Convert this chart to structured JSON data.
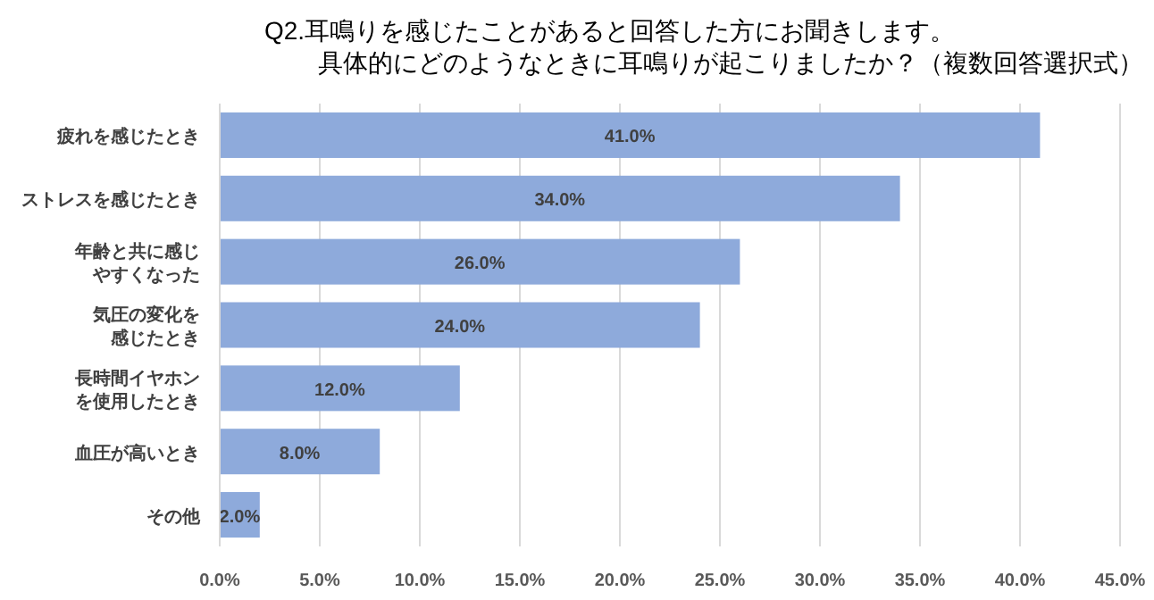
{
  "chart_data": {
    "type": "bar",
    "orientation": "horizontal",
    "title": "Q2.耳鳴りを感じたことがあると回答した方にお聞きします。",
    "subtitle": "具体的にどのようなときに耳鳴りが起こりましたか？（複数回答選択式）",
    "categories": [
      "疲れを感じたとき",
      "ストレスを感じたとき",
      "年齢と共に感じやすくなった",
      "気圧の変化を感じたとき",
      "長時間イヤホンを使用したとき",
      "血圧が高いとき",
      "その他"
    ],
    "values": [
      41,
      34,
      26,
      24,
      12,
      8,
      2
    ],
    "value_labels": [
      "41.0%",
      "34.0%",
      "26.0%",
      "24.0%",
      "12.0%",
      "8.0%",
      "2.0%"
    ],
    "color": "#8eaadb",
    "xlim": [
      0,
      45
    ],
    "xticks": [
      {
        "value": 0,
        "label": "0.0%"
      },
      {
        "value": 5,
        "label": "5.0%"
      },
      {
        "value": 10,
        "label": "10.0%"
      },
      {
        "value": 15,
        "label": "15.0%"
      },
      {
        "value": 20,
        "label": "20.0%"
      },
      {
        "value": 25,
        "label": "25.0%"
      },
      {
        "value": 30,
        "label": "30.0%"
      },
      {
        "value": 35,
        "label": "35.0%"
      },
      {
        "value": 40,
        "label": "40.0%"
      },
      {
        "value": 45,
        "label": "45.0%"
      }
    ],
    "grid": "x"
  }
}
